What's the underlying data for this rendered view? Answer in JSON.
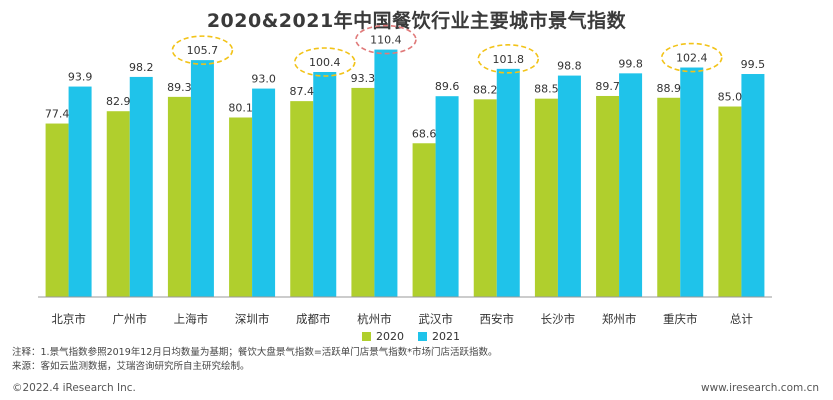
{
  "chart_data": {
    "type": "bar",
    "title": "2020&2021年中国餐饮行业主要城市景气指数",
    "categories": [
      "北京市",
      "广州市",
      "上海市",
      "深圳市",
      "成都市",
      "杭州市",
      "武汉市",
      "西安市",
      "长沙市",
      "郑州市",
      "重庆市",
      "总计"
    ],
    "series": [
      {
        "name": "2020",
        "color": "#b0cf2d",
        "values": [
          77.4,
          82.9,
          89.3,
          80.1,
          87.4,
          93.3,
          68.6,
          88.2,
          88.5,
          89.7,
          88.9,
          85.0
        ]
      },
      {
        "name": "2021",
        "color": "#1fc3ea",
        "values": [
          93.9,
          98.2,
          105.7,
          93.0,
          100.4,
          110.4,
          89.6,
          101.8,
          98.8,
          99.8,
          102.4,
          99.5
        ]
      }
    ],
    "value_labels": {
      "2020": [
        "77.4",
        "82.9",
        "89.3",
        "80.1",
        "87.4",
        "93.3",
        "68.6",
        "88.2",
        "88.5",
        "89.7",
        "88.9",
        "85.0"
      ],
      "2021": [
        "93.9",
        "98.2",
        "105.7",
        "93.0",
        "100.4",
        "110.4",
        "89.6",
        "101.8",
        "98.8",
        "99.8",
        "102.4",
        "99.5"
      ]
    },
    "highlighted_2021": [
      {
        "category": "上海市",
        "color": "#f2c318"
      },
      {
        "category": "成都市",
        "color": "#f2c318"
      },
      {
        "category": "杭州市",
        "color": "#e07a7a"
      },
      {
        "category": "西安市",
        "color": "#f2c318"
      },
      {
        "category": "重庆市",
        "color": "#f2c318"
      }
    ],
    "ylim": [
      0,
      112
    ],
    "grid": false,
    "legend_position": "bottom-center"
  },
  "notes": {
    "line1": "注释：1.景气指数参照2019年12月日均数量为基期；餐饮大盘景气指数=活跃单门店景气指数*市场门店活跃指数。",
    "line2": "来源：客如云监测数据，艾瑞咨询研究所自主研究绘制。"
  },
  "footer": {
    "copyright": "©2022.4 iResearch Inc.",
    "website": "www.iresearch.com.cn"
  }
}
